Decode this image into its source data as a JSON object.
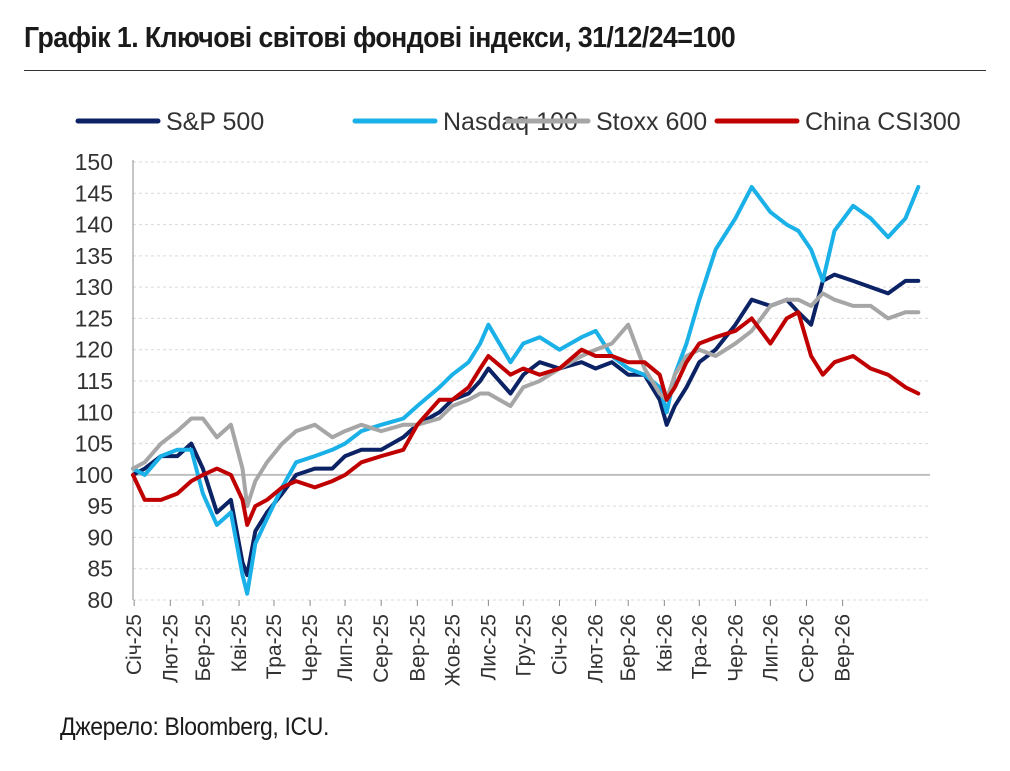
{
  "header": {
    "title": "Графік 1. Ключові світові фондові індекси, 31/12/24=100"
  },
  "footer": {
    "source": "Джерело: Bloomberg, ICU."
  },
  "chart_data": {
    "type": "line",
    "title": "Графік 1. Ключові світові фондові індекси, 31/12/24=100",
    "xlabel": "",
    "ylabel": "",
    "ylim": [
      80,
      150
    ],
    "yticks": [
      80,
      85,
      90,
      95,
      100,
      105,
      110,
      115,
      120,
      125,
      130,
      135,
      140,
      145,
      150
    ],
    "x_range": [
      "2024-12-31",
      "2026-11-15"
    ],
    "x_ticks": [
      {
        "date": "2025-01-01",
        "label": "Січ-25"
      },
      {
        "date": "2025-02-01",
        "label": "Лют-25"
      },
      {
        "date": "2025-03-01",
        "label": "Бер-25"
      },
      {
        "date": "2025-04-01",
        "label": "Кві-25"
      },
      {
        "date": "2025-05-01",
        "label": "Тра-25"
      },
      {
        "date": "2025-06-01",
        "label": "Чер-25"
      },
      {
        "date": "2025-07-01",
        "label": "Лип-25"
      },
      {
        "date": "2025-08-01",
        "label": "Сер-25"
      },
      {
        "date": "2025-09-01",
        "label": "Вер-25"
      },
      {
        "date": "2025-10-01",
        "label": "Жов-25"
      },
      {
        "date": "2025-11-01",
        "label": "Лис-25"
      },
      {
        "date": "2025-12-01",
        "label": "Гру-25"
      },
      {
        "date": "2026-01-01",
        "label": "Січ-26"
      },
      {
        "date": "2026-02-01",
        "label": "Лют-26"
      },
      {
        "date": "2026-03-01",
        "label": "Бер-26"
      },
      {
        "date": "2026-04-01",
        "label": "Кві-26"
      },
      {
        "date": "2026-05-01",
        "label": "Тра-26"
      },
      {
        "date": "2026-06-01",
        "label": "Чер-26"
      },
      {
        "date": "2026-07-01",
        "label": "Лип-26"
      },
      {
        "date": "2026-08-01",
        "label": "Сер-26"
      },
      {
        "date": "2026-09-01",
        "label": "Вер-26"
      }
    ],
    "reference_line": 100,
    "grid": "horizontal-dashed",
    "legend": "top",
    "series": [
      {
        "name": "S&P 500",
        "color": "#0b2265",
        "points": [
          [
            "2024-12-31",
            100
          ],
          [
            "2025-01-10",
            101
          ],
          [
            "2025-01-24",
            103
          ],
          [
            "2025-02-07",
            103
          ],
          [
            "2025-02-19",
            105
          ],
          [
            "2025-03-01",
            101
          ],
          [
            "2025-03-13",
            94
          ],
          [
            "2025-03-25",
            96
          ],
          [
            "2025-04-04",
            86
          ],
          [
            "2025-04-08",
            84
          ],
          [
            "2025-04-15",
            91
          ],
          [
            "2025-04-25",
            94
          ],
          [
            "2025-05-08",
            97
          ],
          [
            "2025-05-20",
            100
          ],
          [
            "2025-06-05",
            101
          ],
          [
            "2025-06-20",
            101
          ],
          [
            "2025-07-01",
            103
          ],
          [
            "2025-07-15",
            104
          ],
          [
            "2025-08-01",
            104
          ],
          [
            "2025-08-20",
            106
          ],
          [
            "2025-09-01",
            108
          ],
          [
            "2025-09-20",
            110
          ],
          [
            "2025-10-01",
            112
          ],
          [
            "2025-10-15",
            113
          ],
          [
            "2025-10-25",
            115
          ],
          [
            "2025-11-01",
            117
          ],
          [
            "2025-11-20",
            113
          ],
          [
            "2025-12-01",
            116
          ],
          [
            "2025-12-15",
            118
          ],
          [
            "2026-01-01",
            117
          ],
          [
            "2026-01-20",
            118
          ],
          [
            "2026-02-01",
            117
          ],
          [
            "2026-02-15",
            118
          ],
          [
            "2026-03-01",
            116
          ],
          [
            "2026-03-15",
            116
          ],
          [
            "2026-03-28",
            112
          ],
          [
            "2026-04-03",
            108
          ],
          [
            "2026-04-10",
            111
          ],
          [
            "2026-04-20",
            114
          ],
          [
            "2026-05-01",
            118
          ],
          [
            "2026-05-15",
            120
          ],
          [
            "2026-06-01",
            124
          ],
          [
            "2026-06-15",
            128
          ],
          [
            "2026-07-01",
            127
          ],
          [
            "2026-07-15",
            128
          ],
          [
            "2026-07-25",
            126
          ],
          [
            "2026-08-05",
            124
          ],
          [
            "2026-08-15",
            131
          ],
          [
            "2026-08-25",
            132
          ],
          [
            "2026-09-10",
            131
          ],
          [
            "2026-09-25",
            130
          ],
          [
            "2026-10-10",
            129
          ],
          [
            "2026-10-25",
            131
          ],
          [
            "2026-11-05",
            131
          ]
        ]
      },
      {
        "name": "Nasdaq 100",
        "color": "#1ab0e8",
        "points": [
          [
            "2024-12-31",
            101
          ],
          [
            "2025-01-10",
            100
          ],
          [
            "2025-01-24",
            103
          ],
          [
            "2025-02-07",
            104
          ],
          [
            "2025-02-19",
            104
          ],
          [
            "2025-03-01",
            97
          ],
          [
            "2025-03-13",
            92
          ],
          [
            "2025-03-25",
            94
          ],
          [
            "2025-04-04",
            84
          ],
          [
            "2025-04-08",
            81
          ],
          [
            "2025-04-15",
            89
          ],
          [
            "2025-04-25",
            93
          ],
          [
            "2025-05-08",
            98
          ],
          [
            "2025-05-20",
            102
          ],
          [
            "2025-06-05",
            103
          ],
          [
            "2025-06-20",
            104
          ],
          [
            "2025-07-01",
            105
          ],
          [
            "2025-07-15",
            107
          ],
          [
            "2025-08-01",
            108
          ],
          [
            "2025-08-20",
            109
          ],
          [
            "2025-09-01",
            111
          ],
          [
            "2025-09-20",
            114
          ],
          [
            "2025-10-01",
            116
          ],
          [
            "2025-10-15",
            118
          ],
          [
            "2025-10-25",
            121
          ],
          [
            "2025-11-01",
            124
          ],
          [
            "2025-11-20",
            118
          ],
          [
            "2025-12-01",
            121
          ],
          [
            "2025-12-15",
            122
          ],
          [
            "2026-01-01",
            120
          ],
          [
            "2026-01-20",
            122
          ],
          [
            "2026-02-01",
            123
          ],
          [
            "2026-02-15",
            119
          ],
          [
            "2026-03-01",
            117
          ],
          [
            "2026-03-15",
            116
          ],
          [
            "2026-03-28",
            114
          ],
          [
            "2026-04-03",
            110
          ],
          [
            "2026-04-10",
            116
          ],
          [
            "2026-04-20",
            121
          ],
          [
            "2026-05-01",
            128
          ],
          [
            "2026-05-15",
            136
          ],
          [
            "2026-06-01",
            141
          ],
          [
            "2026-06-15",
            146
          ],
          [
            "2026-07-01",
            142
          ],
          [
            "2026-07-15",
            140
          ],
          [
            "2026-07-25",
            139
          ],
          [
            "2026-08-05",
            136
          ],
          [
            "2026-08-15",
            131
          ],
          [
            "2026-08-25",
            139
          ],
          [
            "2026-09-10",
            143
          ],
          [
            "2026-09-25",
            141
          ],
          [
            "2026-10-10",
            138
          ],
          [
            "2026-10-25",
            141
          ],
          [
            "2026-11-05",
            146
          ]
        ]
      },
      {
        "name": "Stoxx 600",
        "color": "#a6a6a6",
        "points": [
          [
            "2024-12-31",
            101
          ],
          [
            "2025-01-10",
            102
          ],
          [
            "2025-01-24",
            105
          ],
          [
            "2025-02-07",
            107
          ],
          [
            "2025-02-19",
            109
          ],
          [
            "2025-03-01",
            109
          ],
          [
            "2025-03-13",
            106
          ],
          [
            "2025-03-25",
            108
          ],
          [
            "2025-04-04",
            101
          ],
          [
            "2025-04-08",
            95
          ],
          [
            "2025-04-15",
            99
          ],
          [
            "2025-04-25",
            102
          ],
          [
            "2025-05-08",
            105
          ],
          [
            "2025-05-20",
            107
          ],
          [
            "2025-06-05",
            108
          ],
          [
            "2025-06-20",
            106
          ],
          [
            "2025-07-01",
            107
          ],
          [
            "2025-07-15",
            108
          ],
          [
            "2025-08-01",
            107
          ],
          [
            "2025-08-20",
            108
          ],
          [
            "2025-09-01",
            108
          ],
          [
            "2025-09-20",
            109
          ],
          [
            "2025-10-01",
            111
          ],
          [
            "2025-10-15",
            112
          ],
          [
            "2025-10-25",
            113
          ],
          [
            "2025-11-01",
            113
          ],
          [
            "2025-11-20",
            111
          ],
          [
            "2025-12-01",
            114
          ],
          [
            "2025-12-15",
            115
          ],
          [
            "2026-01-01",
            117
          ],
          [
            "2026-01-20",
            119
          ],
          [
            "2026-02-01",
            120
          ],
          [
            "2026-02-15",
            121
          ],
          [
            "2026-03-01",
            124
          ],
          [
            "2026-03-15",
            117
          ],
          [
            "2026-03-28",
            113
          ],
          [
            "2026-04-03",
            112
          ],
          [
            "2026-04-10",
            116
          ],
          [
            "2026-04-20",
            119
          ],
          [
            "2026-05-01",
            120
          ],
          [
            "2026-05-15",
            119
          ],
          [
            "2026-06-01",
            121
          ],
          [
            "2026-06-15",
            123
          ],
          [
            "2026-07-01",
            127
          ],
          [
            "2026-07-15",
            128
          ],
          [
            "2026-07-25",
            128
          ],
          [
            "2026-08-05",
            127
          ],
          [
            "2026-08-15",
            129
          ],
          [
            "2026-08-25",
            128
          ],
          [
            "2026-09-10",
            127
          ],
          [
            "2026-09-25",
            127
          ],
          [
            "2026-10-10",
            125
          ],
          [
            "2026-10-25",
            126
          ],
          [
            "2026-11-05",
            126
          ]
        ]
      },
      {
        "name": "China CSI300",
        "color": "#c00000",
        "points": [
          [
            "2024-12-31",
            100
          ],
          [
            "2025-01-10",
            96
          ],
          [
            "2025-01-24",
            96
          ],
          [
            "2025-02-07",
            97
          ],
          [
            "2025-02-19",
            99
          ],
          [
            "2025-03-01",
            100
          ],
          [
            "2025-03-13",
            101
          ],
          [
            "2025-03-25",
            100
          ],
          [
            "2025-04-04",
            96
          ],
          [
            "2025-04-08",
            92
          ],
          [
            "2025-04-15",
            95
          ],
          [
            "2025-04-25",
            96
          ],
          [
            "2025-05-08",
            98
          ],
          [
            "2025-05-20",
            99
          ],
          [
            "2025-06-05",
            98
          ],
          [
            "2025-06-20",
            99
          ],
          [
            "2025-07-01",
            100
          ],
          [
            "2025-07-15",
            102
          ],
          [
            "2025-08-01",
            103
          ],
          [
            "2025-08-20",
            104
          ],
          [
            "2025-09-01",
            108
          ],
          [
            "2025-09-20",
            112
          ],
          [
            "2025-10-01",
            112
          ],
          [
            "2025-10-15",
            114
          ],
          [
            "2025-10-25",
            117
          ],
          [
            "2025-11-01",
            119
          ],
          [
            "2025-11-20",
            116
          ],
          [
            "2025-12-01",
            117
          ],
          [
            "2025-12-15",
            116
          ],
          [
            "2026-01-01",
            117
          ],
          [
            "2026-01-20",
            120
          ],
          [
            "2026-02-01",
            119
          ],
          [
            "2026-02-15",
            119
          ],
          [
            "2026-03-01",
            118
          ],
          [
            "2026-03-15",
            118
          ],
          [
            "2026-03-28",
            116
          ],
          [
            "2026-04-03",
            112
          ],
          [
            "2026-04-10",
            114
          ],
          [
            "2026-04-20",
            118
          ],
          [
            "2026-05-01",
            121
          ],
          [
            "2026-05-15",
            122
          ],
          [
            "2026-06-01",
            123
          ],
          [
            "2026-06-15",
            125
          ],
          [
            "2026-07-01",
            121
          ],
          [
            "2026-07-15",
            125
          ],
          [
            "2026-07-25",
            126
          ],
          [
            "2026-08-05",
            119
          ],
          [
            "2026-08-15",
            116
          ],
          [
            "2026-08-25",
            118
          ],
          [
            "2026-09-10",
            119
          ],
          [
            "2026-09-25",
            117
          ],
          [
            "2026-10-10",
            116
          ],
          [
            "2026-10-25",
            114
          ],
          [
            "2026-11-05",
            113
          ]
        ]
      }
    ]
  }
}
